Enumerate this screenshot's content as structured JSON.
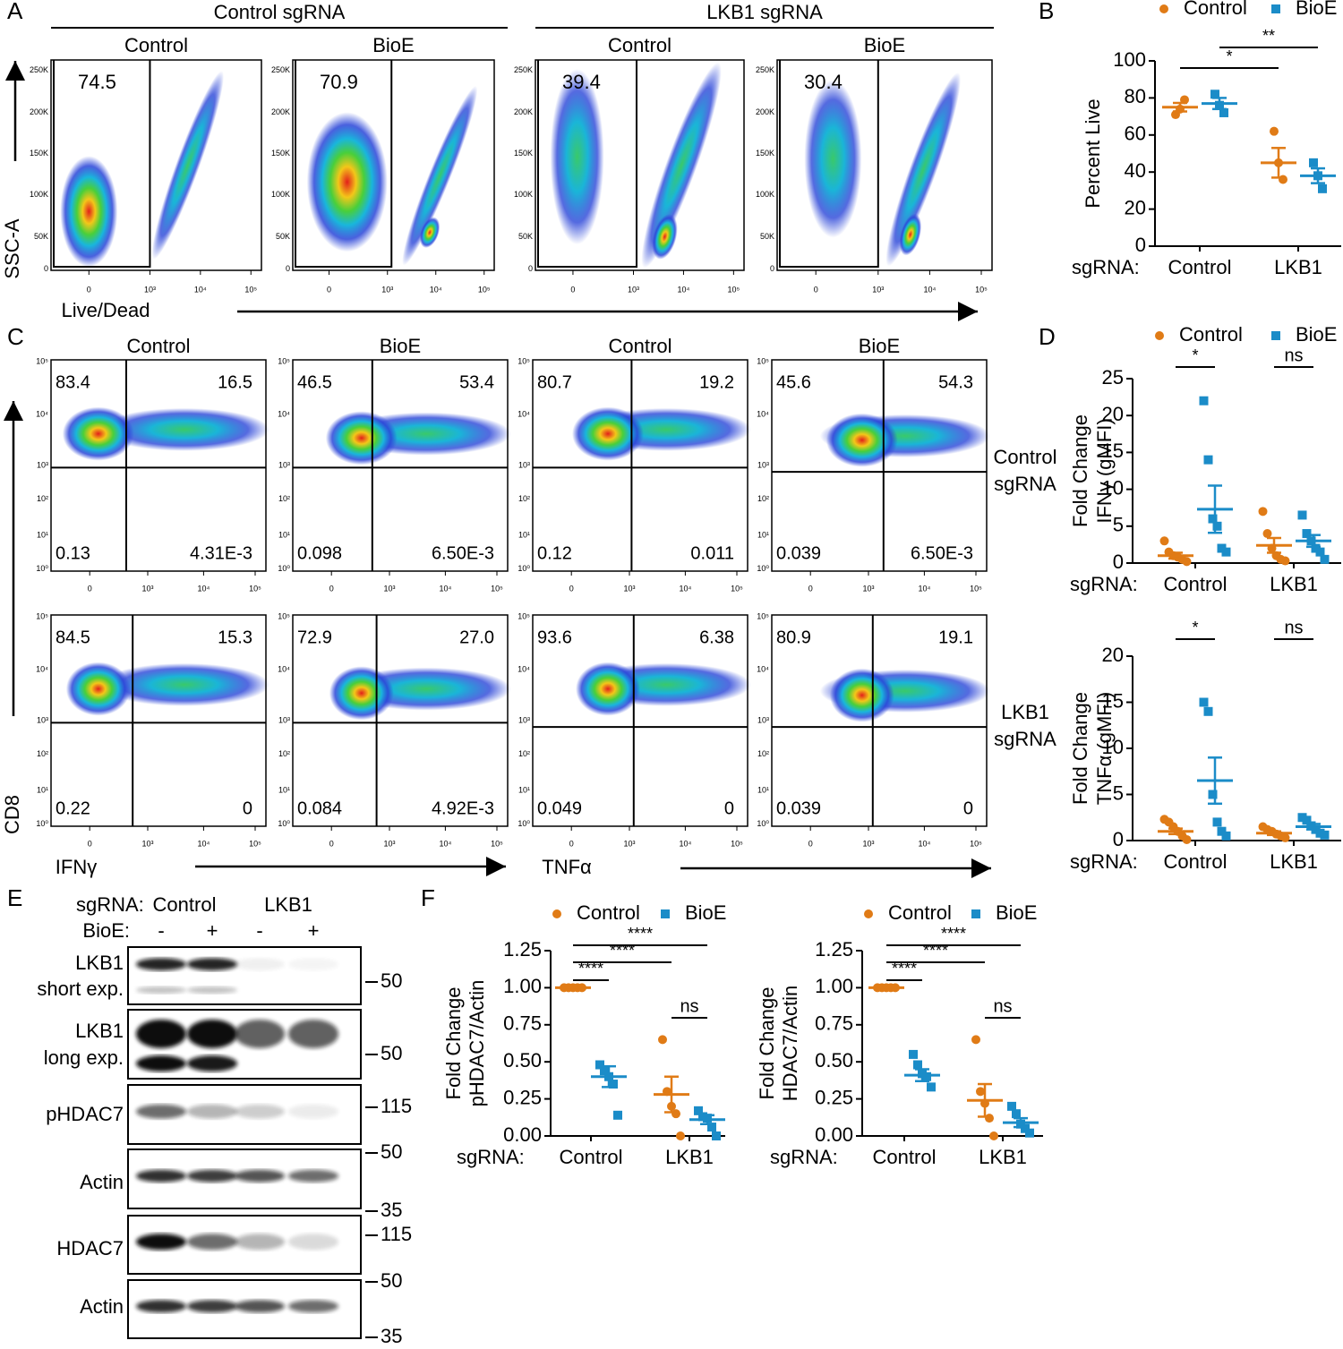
{
  "letters": [
    "A",
    "B",
    "C",
    "D",
    "E",
    "F"
  ],
  "panel_a": {
    "groups": [
      "Control sgRNA",
      "LKB1 sgRNA"
    ],
    "plots": [
      {
        "title": "Control",
        "gate": "74.5"
      },
      {
        "title": "BioE",
        "gate": "70.9"
      },
      {
        "title": "Control",
        "gate": "39.4"
      },
      {
        "title": "BioE",
        "gate": "30.4"
      }
    ],
    "y_ticks": [
      "250K",
      "200K",
      "150K",
      "100K",
      "50K",
      "0"
    ],
    "x_ticks": [
      "0",
      "10³",
      "10⁴",
      "10⁵"
    ],
    "y_label": "SSC-A",
    "x_label": "Live/Dead"
  },
  "panel_c": {
    "column_titles": [
      "Control",
      "BioE",
      "Control",
      "BioE"
    ],
    "rows": [
      {
        "label": [
          "Control",
          "sgRNA"
        ],
        "plots": [
          [
            "83.4",
            "16.5",
            "0.13",
            "4.31E-3"
          ],
          [
            "46.5",
            "53.4",
            "0.098",
            "6.50E-3"
          ],
          [
            "80.7",
            "19.2",
            "0.12",
            "0.011"
          ],
          [
            "45.6",
            "54.3",
            "0.039",
            "6.50E-3"
          ]
        ]
      },
      {
        "label": [
          "LKB1",
          "sgRNA"
        ],
        "plots": [
          [
            "84.5",
            "15.3",
            "0.22",
            "0"
          ],
          [
            "72.9",
            "27.0",
            "0.084",
            "4.92E-3"
          ],
          [
            "93.6",
            "6.38",
            "0.049",
            "0"
          ],
          [
            "80.9",
            "19.1",
            "0.039",
            "0"
          ]
        ]
      }
    ],
    "y_ticks": [
      "10⁵",
      "10⁴",
      "10³",
      "10²",
      "10¹",
      "10⁰"
    ],
    "x_ticks": [
      "0",
      "10³",
      "10⁴",
      "10⁵"
    ],
    "y_label": "CD8",
    "x_labels": [
      "IFNγ",
      "TNFα"
    ]
  },
  "panel_e": {
    "sgrna_label": "sgRNA:",
    "sgrna_groups": [
      "Control",
      "LKB1"
    ],
    "treatment_label": "BioE:",
    "treatment_signs": [
      "-",
      "+",
      "-",
      "+"
    ],
    "rows": [
      {
        "label": [
          "LKB1",
          "short exp."
        ],
        "markers": [
          "50"
        ]
      },
      {
        "label": [
          "LKB1",
          "long exp."
        ],
        "markers": [
          "50"
        ]
      },
      {
        "label": [
          "pHDAC7"
        ],
        "markers": [
          "115",
          "50"
        ]
      },
      {
        "label": [
          "Actin"
        ],
        "markers": [
          "35"
        ]
      },
      {
        "label": [
          "HDAC7"
        ],
        "markers": [
          "115",
          "50"
        ]
      },
      {
        "label": [
          "Actin"
        ],
        "markers": [
          "35"
        ]
      }
    ]
  },
  "chart_data": [
    {
      "type": "dot",
      "ylabel": [
        "Percent Live"
      ],
      "xlabel": "sgRNA:",
      "categories": [
        "Control",
        "LKB1"
      ],
      "legend": "top",
      "ylim": [
        0,
        100
      ],
      "yticks": [
        0,
        20,
        40,
        60,
        80,
        100
      ],
      "series": [
        {
          "name": "Control",
          "color": "#e07b16",
          "marker": "circle",
          "values": [
            [
              71,
              74,
              79
            ],
            [
              62,
              45,
              36
            ]
          ],
          "means": [
            75,
            45
          ],
          "sems": [
            2.3,
            8
          ]
        },
        {
          "name": "BioE",
          "color": "#1b8cc8",
          "marker": "square",
          "values": [
            [
              82,
              76,
              72
            ],
            [
              45,
              38,
              31
            ]
          ],
          "means": [
            77,
            38
          ],
          "sems": [
            3,
            4
          ]
        }
      ],
      "annotations": [
        {
          "text": "*",
          "between": [
            [
              0,
              0
            ],
            [
              1,
              0
            ]
          ]
        },
        {
          "text": "**",
          "between": [
            [
              0,
              1
            ],
            [
              1,
              1
            ]
          ]
        }
      ]
    },
    {
      "type": "dot",
      "ylabel": [
        "Fold Change",
        "IFNγ (gMFI)"
      ],
      "xlabel": "sgRNA:",
      "categories": [
        "Control",
        "LKB1"
      ],
      "legend": "top",
      "ylim": [
        0,
        25
      ],
      "yticks": [
        0,
        5,
        10,
        15,
        20,
        25
      ],
      "series": [
        {
          "name": "Control",
          "color": "#e07b16",
          "marker": "circle",
          "values": [
            [
              3,
              1.5,
              1,
              0.8,
              0.5,
              0.2
            ],
            [
              7,
              4,
              2,
              1,
              0.5,
              0.3
            ]
          ],
          "means": [
            1,
            2.4
          ],
          "sems": [
            0.4,
            1
          ]
        },
        {
          "name": "BioE",
          "color": "#1b8cc8",
          "marker": "square",
          "values": [
            [
              22,
              14,
              6,
              5,
              2,
              1.5
            ],
            [
              6.5,
              4,
              3,
              2,
              1.5,
              0.5
            ]
          ],
          "means": [
            7.3,
            3
          ],
          "sems": [
            3.2,
            0.8
          ]
        }
      ],
      "annotations": [
        {
          "text": "*",
          "between": [
            [
              0,
              0
            ],
            [
              0,
              1
            ]
          ]
        },
        {
          "text": "ns",
          "between": [
            [
              1,
              0
            ],
            [
              1,
              1
            ]
          ]
        }
      ]
    },
    {
      "type": "dot",
      "ylabel": [
        "Fold Change",
        "TNFα (gMFI)"
      ],
      "xlabel": "sgRNA:",
      "categories": [
        "Control",
        "LKB1"
      ],
      "ylim": [
        0,
        20
      ],
      "yticks": [
        0,
        5,
        10,
        15,
        20
      ],
      "series": [
        {
          "color": "#e07b16",
          "marker": "circle",
          "values": [
            [
              2.3,
              2,
              1.5,
              1,
              0.5,
              0.1
            ],
            [
              1.5,
              1.2,
              1,
              0.7,
              0.5,
              0.3
            ]
          ],
          "means": [
            1,
            0.8
          ],
          "sems": [
            0.3,
            0.2
          ]
        },
        {
          "color": "#1b8cc8",
          "marker": "square",
          "values": [
            [
              15,
              14,
              5,
              2,
              1,
              0.5
            ],
            [
              2.5,
              2.2,
              1.6,
              1.2,
              0.8,
              0.6
            ]
          ],
          "means": [
            6.5,
            1.5
          ],
          "sems": [
            2.5,
            0.3
          ]
        }
      ],
      "annotations": [
        {
          "text": "*",
          "between": [
            [
              0,
              0
            ],
            [
              0,
              1
            ]
          ]
        },
        {
          "text": "ns",
          "between": [
            [
              1,
              0
            ],
            [
              1,
              1
            ]
          ]
        }
      ]
    },
    {
      "type": "dot",
      "ylabel": [
        "Fold Change",
        "pHDAC7/Actin"
      ],
      "xlabel": "sgRNA:",
      "categories": [
        "Control",
        "LKB1"
      ],
      "legend": "top",
      "ylim": [
        0,
        1.25
      ],
      "yticks": [
        {
          "value": 0,
          "label": "0.00"
        },
        {
          "value": 0.25,
          "label": "0.25"
        },
        {
          "value": 0.5,
          "label": "0.50"
        },
        {
          "value": 0.75,
          "label": "0.75"
        },
        {
          "value": 1,
          "label": "1.00"
        },
        {
          "value": 1.25,
          "label": "1.25"
        }
      ],
      "series": [
        {
          "name": "Control",
          "color": "#e07b16",
          "marker": "circle",
          "values": [
            [
              1,
              1,
              1,
              1,
              1
            ],
            [
              0.65,
              0.3,
              0.2,
              0.15,
              0
            ]
          ],
          "means": [
            1,
            0.28
          ],
          "sems": [
            0,
            0.12
          ]
        },
        {
          "name": "BioE",
          "color": "#1b8cc8",
          "marker": "square",
          "values": [
            [
              0.48,
              0.44,
              0.4,
              0.35,
              0.14
            ],
            [
              0.17,
              0.13,
              0.12,
              0.06,
              0
            ]
          ],
          "means": [
            0.4,
            0.11
          ],
          "sems": [
            0.07,
            0.03
          ]
        }
      ],
      "annotations": [
        {
          "text": "****",
          "between": [
            [
              0,
              0
            ],
            [
              0,
              1
            ]
          ]
        },
        {
          "text": "****",
          "between": [
            [
              0,
              0
            ],
            [
              1,
              0
            ]
          ]
        },
        {
          "text": "****",
          "between": [
            [
              0,
              0
            ],
            [
              1,
              1
            ]
          ]
        },
        {
          "text": "ns",
          "between": [
            [
              1,
              0
            ],
            [
              1,
              1
            ]
          ]
        }
      ]
    },
    {
      "type": "dot",
      "ylabel": [
        "Fold Change",
        "HDAC7/Actin"
      ],
      "xlabel": "sgRNA:",
      "categories": [
        "Control",
        "LKB1"
      ],
      "legend": "top",
      "ylim": [
        0,
        1.25
      ],
      "yticks": [
        {
          "value": 0,
          "label": "0.00"
        },
        {
          "value": 0.25,
          "label": "0.25"
        },
        {
          "value": 0.5,
          "label": "0.50"
        },
        {
          "value": 0.75,
          "label": "0.75"
        },
        {
          "value": 1,
          "label": "1.00"
        },
        {
          "value": 1.25,
          "label": "1.25"
        }
      ],
      "series": [
        {
          "name": "Control",
          "color": "#e07b16",
          "marker": "circle",
          "values": [
            [
              1,
              1,
              1,
              1,
              1
            ],
            [
              0.65,
              0.3,
              0.22,
              0.12,
              0
            ]
          ],
          "means": [
            1,
            0.24
          ],
          "sems": [
            0,
            0.11
          ]
        },
        {
          "name": "BioE",
          "color": "#1b8cc8",
          "marker": "square",
          "values": [
            [
              0.55,
              0.48,
              0.42,
              0.4,
              0.33
            ],
            [
              0.2,
              0.15,
              0.08,
              0.05,
              0.02
            ]
          ],
          "means": [
            0.41,
            0.09
          ],
          "sems": [
            0.04,
            0.03
          ]
        }
      ],
      "annotations": [
        {
          "text": "****",
          "between": [
            [
              0,
              0
            ],
            [
              0,
              1
            ]
          ]
        },
        {
          "text": "****",
          "between": [
            [
              0,
              0
            ],
            [
              1,
              0
            ]
          ]
        },
        {
          "text": "****",
          "between": [
            [
              0,
              0
            ],
            [
              1,
              1
            ]
          ]
        },
        {
          "text": "ns",
          "between": [
            [
              1,
              0
            ],
            [
              1,
              1
            ]
          ]
        }
      ]
    }
  ]
}
